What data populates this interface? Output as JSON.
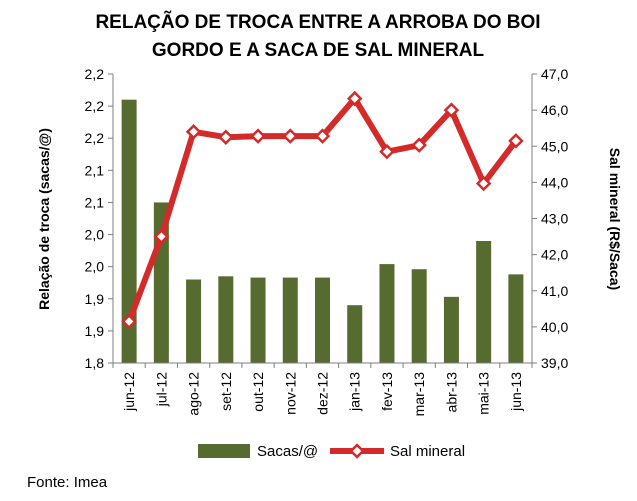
{
  "chart_data": {
    "type": "bar",
    "title_lines": [
      "RELAÇÃO DE TROCA ENTRE A ARROBA DO BOI",
      "GORDO E A SACA DE SAL MINERAL"
    ],
    "categories": [
      "jun-12",
      "jul-12",
      "ago-12",
      "set-12",
      "out-12",
      "nov-12",
      "dez-12",
      "jan-13",
      "fev-13",
      "mar-13",
      "abr-13",
      "mai-13",
      "jun-13"
    ],
    "series": [
      {
        "name": "Sacas/@",
        "type": "bar",
        "axis": "left",
        "color": "#556b2f",
        "values": [
          2.21,
          2.05,
          1.93,
          1.935,
          1.933,
          1.933,
          1.933,
          1.89,
          1.954,
          1.946,
          1.903,
          1.99,
          1.938
        ]
      },
      {
        "name": "Sal mineral",
        "type": "line",
        "axis": "right",
        "color": "#d42a2a",
        "values": [
          40.15,
          42.5,
          45.4,
          45.25,
          45.28,
          45.28,
          45.28,
          46.32,
          44.85,
          45.03,
          46.0,
          43.97,
          45.15
        ]
      }
    ],
    "y_left": {
      "label": "Relação de troca (sacas/@)",
      "min": 1.8,
      "max": 2.25,
      "ticks": [
        1.8,
        1.85,
        1.9,
        1.95,
        2.0,
        2.05,
        2.1,
        2.15,
        2.2,
        2.25
      ],
      "tick_labels": [
        "1,8",
        "1,9",
        "1,9",
        "2,0",
        "2,0",
        "2,1",
        "2,1",
        "2,2",
        "2,2",
        "2,2"
      ]
    },
    "y_right": {
      "label": "Sal mineral (R$/Saca)",
      "min": 39.0,
      "max": 47.0,
      "ticks": [
        39,
        40,
        41,
        42,
        43,
        44,
        45,
        46,
        47
      ],
      "tick_labels": [
        "39,0",
        "40,0",
        "41,0",
        "42,0",
        "43,0",
        "44,0",
        "45,0",
        "46,0",
        "47,0"
      ]
    },
    "grid": false,
    "legend_position": "bottom"
  },
  "source": "Fonte: Imea"
}
